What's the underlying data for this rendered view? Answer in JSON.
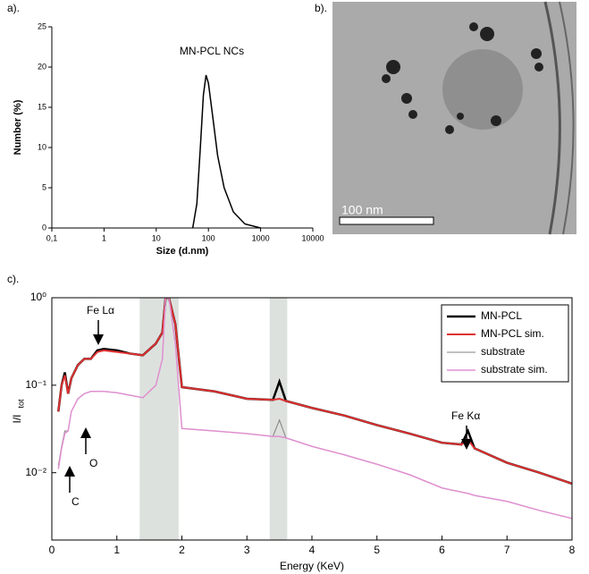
{
  "chart_data": [
    {
      "type": "line",
      "panel_label": "a).",
      "annotation": "MN-PCL NCs",
      "xlabel": "Size (d.nm)",
      "ylabel": "Number (%)",
      "xscale": "log",
      "xlim": [
        0.1,
        10000
      ],
      "xticks": [
        {
          "value": 0.1,
          "label": "0,1"
        },
        1,
        10,
        100,
        1000,
        10000
      ],
      "ylim": [
        0,
        25
      ],
      "yticks": [
        0,
        5,
        10,
        15,
        20,
        25
      ],
      "color": "#000000",
      "x": [
        50,
        60,
        70,
        80,
        90,
        100,
        120,
        150,
        200,
        300,
        500,
        1000
      ],
      "values": [
        0,
        3,
        10,
        16.5,
        19,
        18,
        14,
        9,
        5,
        2,
        0.5,
        0
      ]
    },
    {
      "type": "image",
      "panel_label": "b).",
      "scale_bar_label": "100 nm"
    },
    {
      "type": "line",
      "panel_label": "c).",
      "xlabel": "Energy (KeV)",
      "ylabel": "I/I",
      "ylabel_sub": "tot",
      "yscale": "log",
      "xlim": [
        0,
        8
      ],
      "xticks": [
        0,
        1,
        2,
        3,
        4,
        5,
        6,
        7,
        8
      ],
      "ylim": [
        0.0017,
        1
      ],
      "yticks": [
        {
          "value": 0.01,
          "label": "10⁻²"
        },
        {
          "value": 0.1,
          "label": "10⁻¹"
        },
        {
          "value": 1,
          "label": "10⁰"
        }
      ],
      "highlight_ranges": [
        [
          1.35,
          1.95
        ],
        [
          3.35,
          3.62
        ]
      ],
      "legend": "upper right",
      "annotations": [
        "Fe Lα",
        "Fe Kα",
        "O",
        "C"
      ],
      "x": [
        0.1,
        0.15,
        0.2,
        0.25,
        0.3,
        0.4,
        0.5,
        0.6,
        0.7,
        0.8,
        1.0,
        1.2,
        1.4,
        1.6,
        1.7,
        1.75,
        1.8,
        1.9,
        2.0,
        2.5,
        3.0,
        3.4,
        3.5,
        3.6,
        4.0,
        4.5,
        5.0,
        5.5,
        6.0,
        6.3,
        6.4,
        6.5,
        7.0,
        7.5,
        8.0
      ],
      "series": [
        {
          "name": "MN-PCL",
          "color": "#000000",
          "width": 2.5,
          "values": [
            0.05,
            0.1,
            0.14,
            0.08,
            0.12,
            0.17,
            0.2,
            0.2,
            0.25,
            0.26,
            0.25,
            0.23,
            0.22,
            0.3,
            0.4,
            1,
            1,
            0.5,
            0.095,
            0.085,
            0.07,
            0.068,
            0.11,
            0.066,
            0.055,
            0.045,
            0.035,
            0.028,
            0.022,
            0.021,
            0.03,
            0.019,
            0.013,
            0.01,
            0.0075
          ]
        },
        {
          "name": "MN-PCL sim.",
          "color": "#e03030",
          "width": 2,
          "values": [
            0.05,
            0.1,
            0.13,
            0.08,
            0.12,
            0.17,
            0.2,
            0.2,
            0.24,
            0.25,
            0.24,
            0.23,
            0.22,
            0.3,
            0.4,
            1,
            1,
            0.5,
            0.095,
            0.085,
            0.07,
            0.068,
            0.07,
            0.066,
            0.055,
            0.045,
            0.035,
            0.028,
            0.022,
            0.021,
            0.024,
            0.019,
            0.013,
            0.01,
            0.0075
          ]
        },
        {
          "name": "substrate",
          "color": "#808080",
          "width": 1,
          "values": [
            0.012,
            0.02,
            0.03,
            0.03,
            0.05,
            0.07,
            0.08,
            0.085,
            0.085,
            0.085,
            0.082,
            0.077,
            0.072,
            0.1,
            0.2,
            1,
            1,
            0.3,
            0.032,
            0.03,
            0.028,
            0.026,
            0.04,
            0.025,
            0.02,
            0.016,
            0.0125,
            0.0095,
            0.0067,
            0.006,
            0.0058,
            0.0055,
            0.0047,
            0.0037,
            0.003
          ]
        },
        {
          "name": "substrate sim.",
          "color": "#e090d0",
          "width": 1.5,
          "values": [
            0.011,
            0.019,
            0.028,
            0.03,
            0.05,
            0.07,
            0.08,
            0.085,
            0.085,
            0.085,
            0.082,
            0.077,
            0.072,
            0.1,
            0.2,
            1,
            1,
            0.3,
            0.032,
            0.03,
            0.028,
            0.026,
            0.026,
            0.025,
            0.02,
            0.016,
            0.0125,
            0.0095,
            0.0067,
            0.006,
            0.0058,
            0.0055,
            0.0047,
            0.0037,
            0.003
          ]
        }
      ]
    }
  ]
}
